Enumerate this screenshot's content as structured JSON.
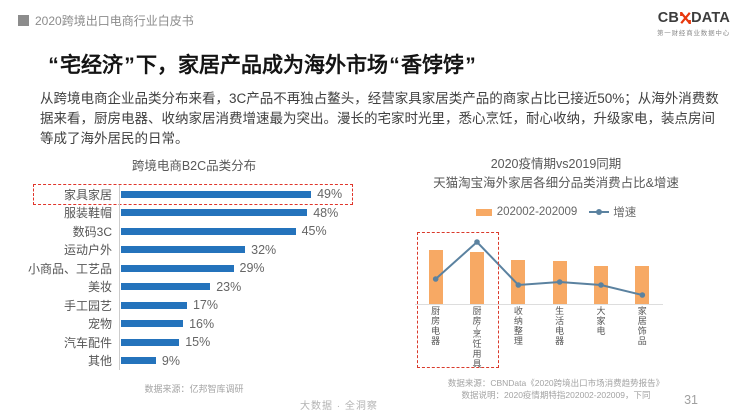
{
  "header": {
    "doc_title": "2020跨境出口电商行业白皮书",
    "logo_prefix": "CB",
    "logo_suffix": "DATA",
    "logo_subtitle": "第一财经商业数据中心"
  },
  "title": "“宅经济”下，家居产品成为海外市场“香饽饽”",
  "paragraph": {
    "line1": "从跨境电商企业品类分布来看，3C产品不再独占鳌头，经营家具家居类产品的商家占比已接近50%；从海外消费数",
    "line2": "据来看，厨房电器、收纳家居消费增速最为突出。漫长的宅家时光里，悉心烹饪，耐心收纳，升级家电，装点房间",
    "line3": "等成了海外居民的日常。"
  },
  "footer": {
    "slogan": "大数据 · 全洞察",
    "page": "31"
  },
  "colors": {
    "bar_blue": "#2473bc",
    "bar_orange": "#f7a964",
    "line_blue": "#5b82a0",
    "highlight_red": "#e0352b"
  },
  "chart_data": [
    {
      "type": "bar",
      "orientation": "horizontal",
      "title": "跨境电商B2C品类分布",
      "categories": [
        "家具家居",
        "服装鞋帽",
        "数码3C",
        "运动户外",
        "小商品、工艺品",
        "美妆",
        "手工园艺",
        "宠物",
        "汽车配件",
        "其他"
      ],
      "values": [
        49,
        48,
        45,
        32,
        29,
        23,
        17,
        16,
        15,
        9
      ],
      "unit": "%",
      "xlim": [
        0,
        52
      ],
      "highlight_category": "家具家居",
      "source": "数据来源：亿邦智库调研",
      "legend_position": "none",
      "grid": false
    },
    {
      "type": "bar+line",
      "title": "2020疫情期vs2019同期",
      "subtitle": "天猫淘宝海外家居各细分品类消费占比&增速",
      "categories": [
        "厨房电器",
        "厨房/烹饪用具",
        "收纳整理",
        "生活电器",
        "大家电",
        "家居饰品"
      ],
      "series": [
        {
          "name": "202002-202009",
          "type": "bar",
          "values": [
            54,
            52,
            44,
            43,
            38,
            38
          ]
        },
        {
          "name": "增速",
          "type": "line",
          "values": [
            26,
            63,
            20,
            23,
            20,
            10
          ]
        }
      ],
      "value_note": "relative heights; axis unlabeled in source",
      "highlight_categories": [
        "厨房电器",
        "厨房/烹饪用具"
      ],
      "source": "数据来源：CBNData《2020跨境出口市场消费趋势报告》",
      "note": "数据说明：2020疫情期特指202002-202009，下同",
      "legend_position": "top",
      "grid": false
    }
  ]
}
